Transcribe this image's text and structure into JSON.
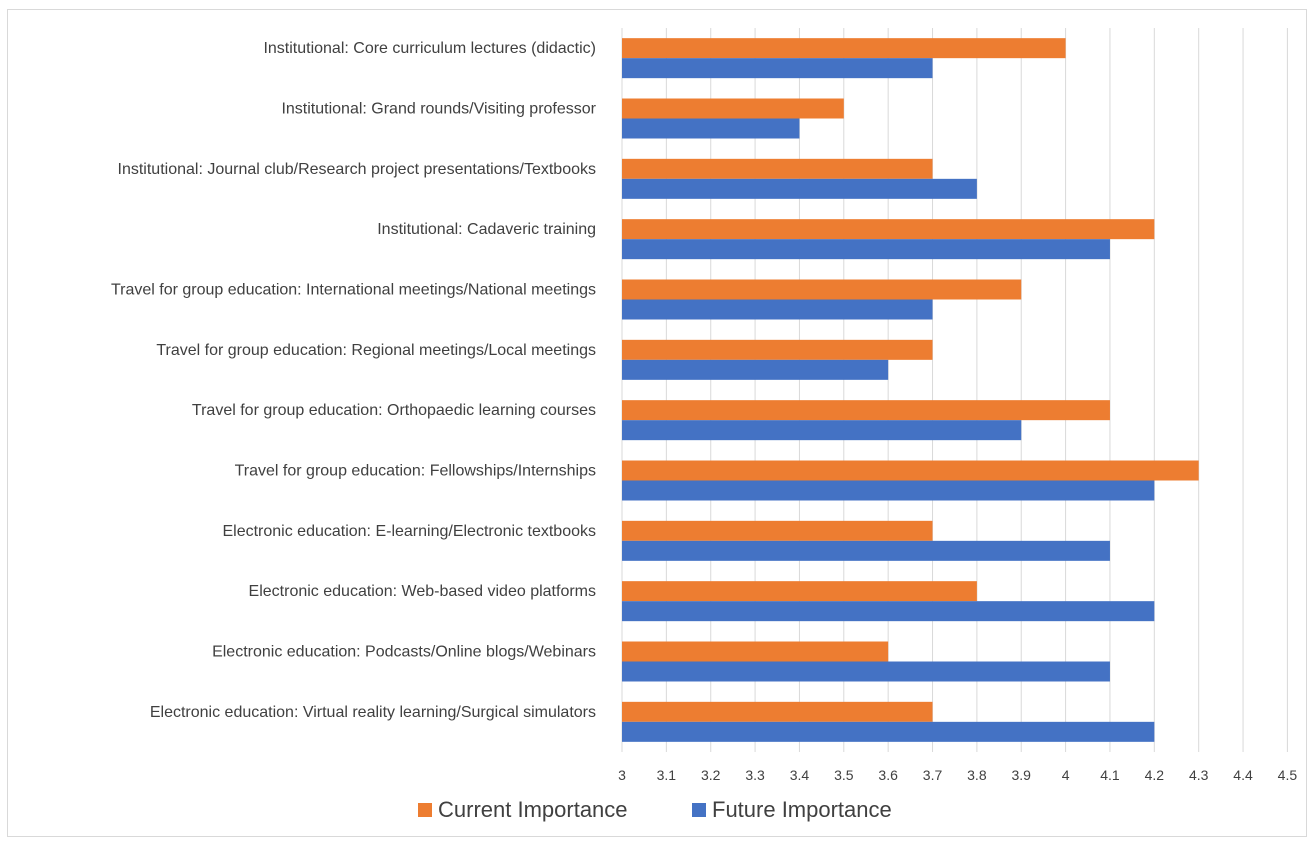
{
  "chart_data": {
    "type": "bar",
    "orientation": "horizontal",
    "title": "",
    "xlabel": "",
    "ylabel": "",
    "xlim": [
      3,
      4.5
    ],
    "x_ticks": [
      "3",
      "3.1",
      "3.2",
      "3.3",
      "3.4",
      "3.5",
      "3.6",
      "3.7",
      "3.8",
      "3.9",
      "4",
      "4.1",
      "4.2",
      "4.3",
      "4.4",
      "4.5"
    ],
    "grid": "vertical",
    "legend_position": "bottom",
    "categories": [
      "Institutional: Core curriculum lectures (didactic)",
      "Institutional: Grand rounds/Visiting professor",
      "Institutional: Journal club/Research project presentations/Textbooks",
      "Institutional: Cadaveric training",
      "Travel for group education: International meetings/National meetings",
      "Travel for group education: Regional meetings/Local meetings",
      "Travel for group education: Orthopaedic learning courses",
      "Travel for group education: Fellowships/Internships",
      "Electronic education: E-learning/Electronic textbooks",
      "Electronic education: Web-based video platforms",
      "Electronic education: Podcasts/Online blogs/Webinars",
      "Electronic education: Virtual reality learning/Surgical simulators"
    ],
    "series": [
      {
        "name": "Current Importance",
        "color": "#ed7d31",
        "values": [
          4.0,
          3.5,
          3.7,
          4.2,
          3.9,
          3.7,
          4.1,
          4.3,
          3.7,
          3.8,
          3.6,
          3.7
        ]
      },
      {
        "name": "Future Importance",
        "color": "#4472c4",
        "values": [
          3.7,
          3.4,
          3.8,
          4.1,
          3.7,
          3.6,
          3.9,
          4.2,
          4.1,
          4.2,
          4.1,
          4.2
        ]
      }
    ]
  }
}
